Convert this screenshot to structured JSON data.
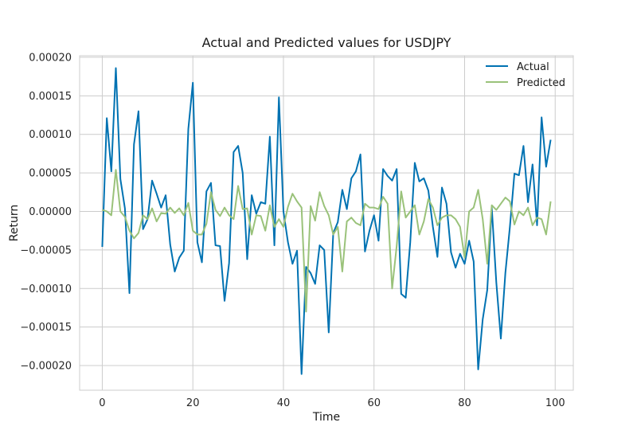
{
  "chart_data": {
    "type": "line",
    "title": "Actual and Predicted values for USDJPY",
    "xlabel": "Time",
    "ylabel": "Return",
    "xlim": [
      -5,
      104
    ],
    "ylim": [
      -0.000232,
      0.000202
    ],
    "xticks": [
      0,
      20,
      40,
      60,
      80,
      100
    ],
    "xtick_labels": [
      "0",
      "20",
      "40",
      "60",
      "80",
      "100"
    ],
    "yticks": [
      0.0002,
      0.00015,
      0.0001,
      5e-05,
      0,
      -5e-05,
      -0.0001,
      -0.00015,
      -0.0002
    ],
    "ytick_labels": [
      "0.00020",
      "0.00015",
      "0.00010",
      "0.00005",
      "0.00000",
      "−0.00005",
      "−0.00010",
      "−0.00015",
      "−0.00020"
    ],
    "grid": true,
    "legend_position": "top-right",
    "series": [
      {
        "name": "Actual",
        "color": "#0072b2",
        "values": [
          -4.6e-05,
          0.000121,
          5.2e-05,
          0.000186,
          4.2e-05,
          4e-06,
          -0.000106,
          8.7e-05,
          0.00013,
          -2.3e-05,
          -1e-05,
          4e-05,
          2.3e-05,
          5e-06,
          2.1e-05,
          -4.3e-05,
          -7.8e-05,
          -6e-05,
          -5.1e-05,
          0.000107,
          0.000167,
          -4e-05,
          -6.6e-05,
          2.6e-05,
          3.7e-05,
          -4.4e-05,
          -4.5e-05,
          -0.000116,
          -6.7e-05,
          7.7e-05,
          8.5e-05,
          5e-05,
          -6.2e-05,
          2.1e-05,
          -3e-06,
          1.2e-05,
          1e-05,
          9.7e-05,
          -4.4e-05,
          0.000148,
          0.0,
          -4e-05,
          -6.8e-05,
          -5.1e-05,
          -0.000211,
          -7.2e-05,
          -8e-05,
          -9.4e-05,
          -4.4e-05,
          -5e-05,
          -0.000157,
          -2.8e-05,
          -1.4e-05,
          2.8e-05,
          3e-06,
          4.3e-05,
          5.2e-05,
          7.4e-05,
          -5.2e-05,
          -2.5e-05,
          -5e-06,
          -3.8e-05,
          5.5e-05,
          4.6e-05,
          4e-05,
          5.5e-05,
          -0.000107,
          -0.000112,
          -4e-05,
          6.3e-05,
          3.9e-05,
          4.3e-05,
          2.7e-05,
          -2e-05,
          -5.9e-05,
          3.1e-05,
          1e-05,
          -5.3e-05,
          -7.3e-05,
          -5.5e-05,
          -6.8e-05,
          -3.8e-05,
          -6.5e-05,
          -0.000205,
          -0.00014,
          -0.000102,
          5e-06,
          -9.2e-05,
          -0.000165,
          -8e-05,
          -2e-05,
          4.9e-05,
          4.7e-05,
          8.5e-05,
          1.2e-05,
          6.1e-05,
          -1.8e-05,
          0.000122,
          5.8e-05,
          9.3e-05
        ]
      },
      {
        "name": "Predicted",
        "color": "#9ac27a",
        "values": [
          2e-06,
          0.0,
          -5e-06,
          5.4e-05,
          0.0,
          -7e-06,
          -2.5e-05,
          -3.5e-05,
          -2.8e-05,
          -5e-06,
          -1e-05,
          4e-06,
          -1.3e-05,
          -2e-06,
          -3e-06,
          5e-06,
          -2e-06,
          4e-06,
          -5e-06,
          1.1e-05,
          -2.5e-05,
          -3e-05,
          -3e-05,
          -1.6e-05,
          2.5e-05,
          2e-06,
          -6e-06,
          5e-06,
          -5e-06,
          -1e-05,
          3.3e-05,
          3e-06,
          4e-06,
          -3e-05,
          -5e-06,
          -6e-06,
          -2.5e-05,
          8e-06,
          -2e-05,
          -1e-05,
          -2e-05,
          6e-06,
          2.3e-05,
          1.3e-05,
          5e-06,
          -0.00013,
          7e-06,
          -1.2e-05,
          2.5e-05,
          7e-06,
          -5e-06,
          -3e-05,
          -2e-05,
          -7.8e-05,
          -1.3e-05,
          -8e-06,
          -1.5e-05,
          -1.8e-05,
          1e-05,
          5e-06,
          5e-06,
          3e-06,
          1.9e-05,
          1e-05,
          -0.0001,
          -4.5e-05,
          2.6e-05,
          -8e-06,
          0.0,
          8e-06,
          -3e-05,
          -1.3e-05,
          1.6e-05,
          5e-06,
          -1.8e-05,
          -8e-06,
          -5e-06,
          -5e-06,
          -1e-05,
          -2e-05,
          -6e-05,
          0.0,
          5e-06,
          2.8e-05,
          -1e-05,
          -6.8e-05,
          8e-06,
          2e-06,
          1e-05,
          1.8e-05,
          1.3e-05,
          -1.7e-05,
          0.0,
          -5e-06,
          5e-06,
          -1.8e-05,
          -8e-06,
          -1e-05,
          -3e-05,
          1.3e-05
        ]
      }
    ]
  }
}
